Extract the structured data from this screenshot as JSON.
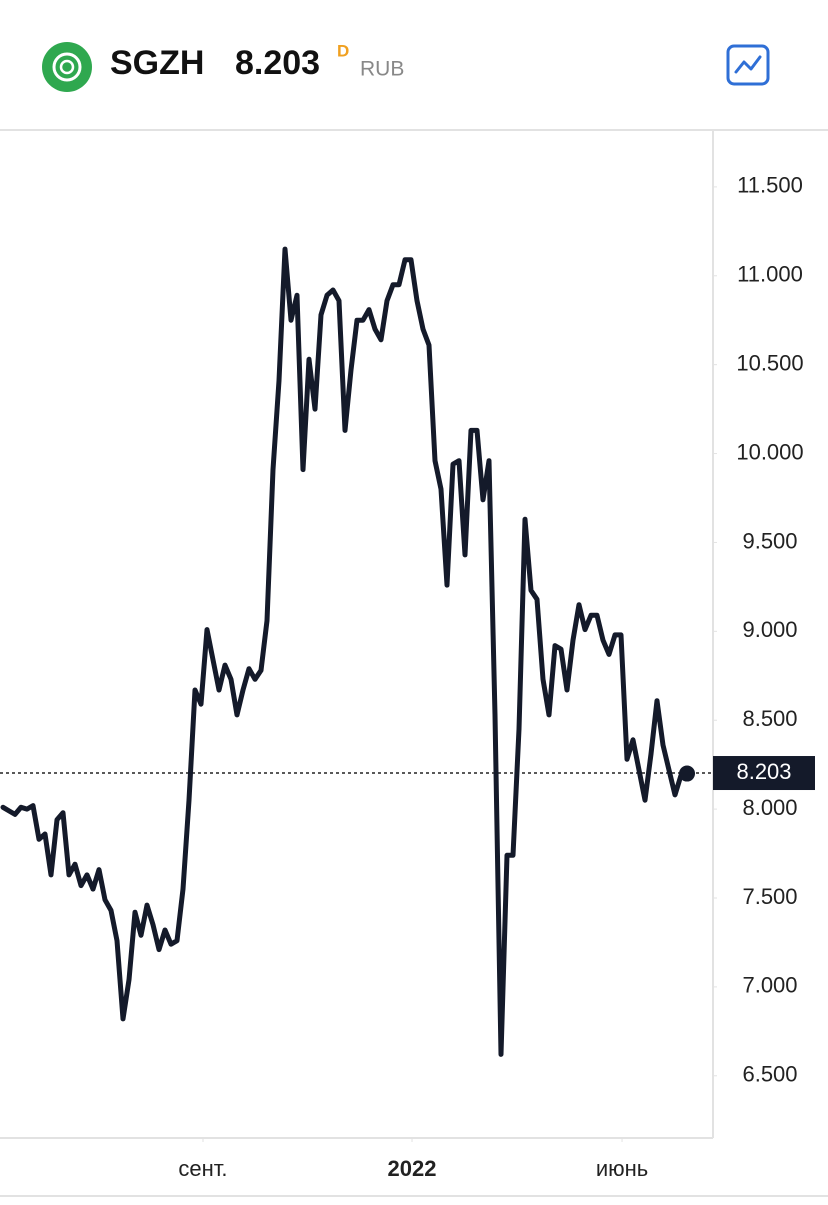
{
  "header": {
    "ticker": "SGZH",
    "price": "8.203",
    "badge": "D",
    "currency": "RUB"
  },
  "chart_data": {
    "type": "line",
    "color": "#141a2a",
    "values": [
      8.01,
      7.99,
      7.97,
      8.01,
      8.0,
      8.02,
      7.83,
      7.86,
      7.63,
      7.94,
      7.98,
      7.63,
      7.69,
      7.57,
      7.63,
      7.55,
      7.66,
      7.49,
      7.43,
      7.26,
      6.82,
      7.04,
      7.42,
      7.29,
      7.46,
      7.35,
      7.21,
      7.32,
      7.24,
      7.26,
      7.55,
      8.05,
      8.67,
      8.59,
      9.01,
      8.84,
      8.67,
      8.81,
      8.73,
      8.53,
      8.67,
      8.79,
      8.73,
      8.78,
      9.06,
      9.91,
      10.41,
      11.15,
      10.75,
      10.89,
      9.91,
      10.53,
      10.25,
      10.78,
      10.89,
      10.92,
      10.86,
      10.13,
      10.47,
      10.75,
      10.75,
      10.81,
      10.7,
      10.64,
      10.86,
      10.95,
      10.95,
      11.09,
      11.09,
      10.86,
      10.7,
      10.61,
      9.96,
      9.8,
      9.26,
      9.94,
      9.96,
      9.43,
      10.13,
      10.13,
      9.74,
      9.96,
      8.53,
      6.62,
      7.74,
      7.74,
      8.45,
      9.63,
      9.23,
      9.18,
      8.73,
      8.53,
      8.92,
      8.9,
      8.67,
      8.95,
      9.15,
      9.01,
      9.09,
      9.09,
      8.95,
      8.87,
      8.98,
      8.98,
      8.28,
      8.39,
      8.22,
      8.05,
      8.31,
      8.61,
      8.36,
      8.22,
      8.08,
      8.19,
      8.2
    ],
    "xlim": [
      -0.5,
      118.33
    ],
    "xticks": [
      {
        "value": 33.33,
        "label": "сент."
      },
      {
        "value": 68.17,
        "label": "2022"
      },
      {
        "value": 103.17,
        "label": "июнь"
      }
    ],
    "ylim": [
      6.15,
      11.82
    ],
    "yticks": [
      {
        "value": 6.5,
        "label": "6.500"
      },
      {
        "value": 7.0,
        "label": "7.000"
      },
      {
        "value": 7.5,
        "label": "7.500"
      },
      {
        "value": 8.0,
        "label": "8.000"
      },
      {
        "value": 8.5,
        "label": "8.500"
      },
      {
        "value": 9.0,
        "label": "9.000"
      },
      {
        "value": 9.5,
        "label": "9.500"
      },
      {
        "value": 10.0,
        "label": "10.000"
      },
      {
        "value": 10.5,
        "label": "10.500"
      },
      {
        "value": 11.0,
        "label": "11.000"
      },
      {
        "value": 11.5,
        "label": "11.500"
      }
    ],
    "last_price": {
      "value": 8.203,
      "label": "8.203"
    }
  }
}
